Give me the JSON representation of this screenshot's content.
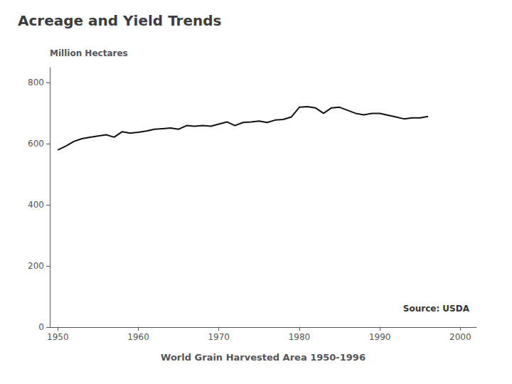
{
  "chart_data": {
    "type": "line",
    "title": "Acreage and Yield Trends",
    "ylabel": "Million Hectares",
    "xlabel": "World Grain Harvested Area 1950-1996",
    "annotations": [
      "Source: USDA"
    ],
    "color": "#111111",
    "x": [
      1950,
      1951,
      1952,
      1953,
      1954,
      1955,
      1956,
      1957,
      1958,
      1959,
      1960,
      1961,
      1962,
      1963,
      1964,
      1965,
      1966,
      1967,
      1968,
      1969,
      1970,
      1971,
      1972,
      1973,
      1974,
      1975,
      1976,
      1977,
      1978,
      1979,
      1980,
      1981,
      1982,
      1983,
      1984,
      1985,
      1986,
      1987,
      1988,
      1989,
      1990,
      1991,
      1992,
      1993,
      1994,
      1995,
      1996
    ],
    "values": [
      580,
      593,
      608,
      617,
      622,
      626,
      630,
      622,
      640,
      635,
      638,
      642,
      648,
      650,
      652,
      648,
      660,
      658,
      660,
      658,
      665,
      672,
      660,
      670,
      672,
      675,
      670,
      678,
      680,
      688,
      720,
      722,
      718,
      700,
      718,
      720,
      710,
      700,
      695,
      700,
      700,
      694,
      688,
      682,
      685,
      685,
      690
    ],
    "xlim": [
      1949,
      2002
    ],
    "xticks": [
      1950,
      1960,
      1970,
      1980,
      1990,
      2000
    ],
    "ylim": [
      0,
      850
    ],
    "yticks": [
      0,
      200,
      400,
      600,
      800
    ],
    "grid": false
  }
}
